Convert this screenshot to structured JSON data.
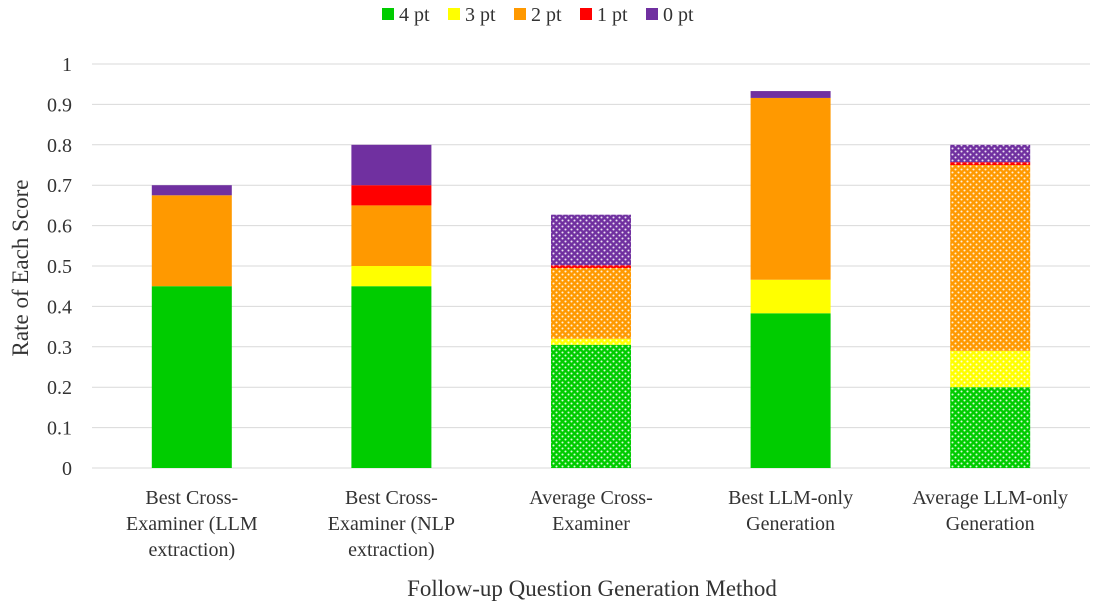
{
  "chart_data": {
    "type": "bar",
    "stacked": true,
    "title": "",
    "xlabel": "Follow-up Question Generation Method",
    "ylabel": "Rate of Each Score",
    "ylim": [
      0,
      1
    ],
    "yticks": [
      "0",
      "0.1",
      "0.2",
      "0.3",
      "0.4",
      "0.5",
      "0.6",
      "0.7",
      "0.8",
      "0.9",
      "1"
    ],
    "grid": true,
    "legend_position": "top",
    "categories": [
      "Best Cross-Examiner (LLM extraction)",
      "Best Cross-Examiner (NLP extraction)",
      "Average Cross-Examiner",
      "Best LLM-only Generation",
      "Average LLM-only Generation"
    ],
    "category_lines": [
      [
        "Best Cross-",
        "Examiner (LLM",
        "extraction)"
      ],
      [
        "Best Cross-",
        "Examiner (NLP",
        "extraction)"
      ],
      [
        "Average Cross-",
        "Examiner"
      ],
      [
        "Best LLM-only",
        "Generation"
      ],
      [
        "Average LLM-only",
        "Generation"
      ]
    ],
    "dotted_pattern": [
      false,
      false,
      true,
      false,
      true
    ],
    "series": [
      {
        "name": "4 pt",
        "color": "#00cc00",
        "values": [
          0.45,
          0.45,
          0.305,
          0.383,
          0.2
        ]
      },
      {
        "name": "3 pt",
        "color": "#ffff00",
        "values": [
          0.0,
          0.05,
          0.015,
          0.083,
          0.09
        ]
      },
      {
        "name": "2 pt",
        "color": "#ff9900",
        "values": [
          0.225,
          0.15,
          0.175,
          0.45,
          0.46
        ]
      },
      {
        "name": "1 pt",
        "color": "#ff0000",
        "values": [
          0.0,
          0.05,
          0.007,
          0.0,
          0.007
        ]
      },
      {
        "name": "0 pt",
        "color": "#7030a0",
        "values": [
          0.025,
          0.1,
          0.125,
          0.017,
          0.043
        ]
      }
    ]
  }
}
